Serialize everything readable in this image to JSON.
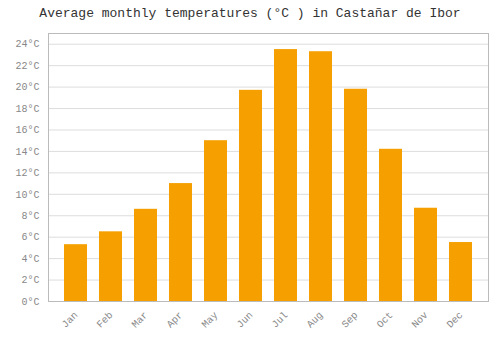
{
  "chart_data": {
    "type": "bar",
    "title": "Average monthly temperatures (°C ) in Castañar de Ibor",
    "categories": [
      "Jan",
      "Feb",
      "Mar",
      "Apr",
      "May",
      "Jun",
      "Jul",
      "Aug",
      "Sep",
      "Oct",
      "Nov",
      "Dec"
    ],
    "values": [
      5.3,
      6.5,
      8.6,
      11.0,
      15.0,
      19.7,
      23.5,
      23.3,
      19.8,
      14.2,
      8.7,
      5.5
    ],
    "color": "#F5A000",
    "ylim": [
      0,
      25
    ],
    "yticks": [
      {
        "value": 0,
        "label": "0°C"
      },
      {
        "value": 2,
        "label": "2°C"
      },
      {
        "value": 4,
        "label": "4°C"
      },
      {
        "value": 6,
        "label": "6°C"
      },
      {
        "value": 8,
        "label": "8°C"
      },
      {
        "value": 10,
        "label": "10°C"
      },
      {
        "value": 12,
        "label": "12°C"
      },
      {
        "value": 14,
        "label": "14°C"
      },
      {
        "value": 16,
        "label": "16°C"
      },
      {
        "value": 18,
        "label": "18°C"
      },
      {
        "value": 20,
        "label": "20°C"
      },
      {
        "value": 22,
        "label": "22°C"
      },
      {
        "value": 24,
        "label": "24°C"
      }
    ],
    "grid": true
  }
}
